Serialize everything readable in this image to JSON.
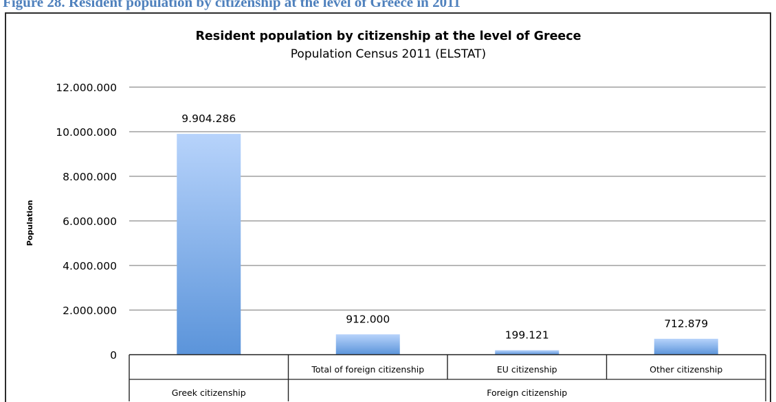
{
  "caption": "Figure 28. Resident population by citizenship at the level of Greece in 2011",
  "colors": {
    "bar_top": "#b7d3fb",
    "bar_bottom": "#5b94da",
    "grid": "#8c8c8c",
    "axis": "#222222",
    "text": "#000000",
    "caption": "#4f81bd"
  },
  "chart_data": {
    "type": "bar",
    "title": "Resident population by citizenship at the level of Greece",
    "subtitle": "Population Census 2011 (ELSTAT)",
    "ylabel": "Population",
    "xlabel": "",
    "ylim": [
      0,
      12000000
    ],
    "yticks": [
      0,
      2000000,
      4000000,
      6000000,
      8000000,
      10000000,
      12000000
    ],
    "ytick_labels": [
      "0",
      "2.000.000",
      "4.000.000",
      "6.000.000",
      "8.000.000",
      "10.000.000",
      "12.000.000"
    ],
    "categories": [
      "Greek citizenship",
      "Total of foreign citizenship",
      "EU citizenship",
      "Other citizenship"
    ],
    "values": [
      9904286,
      912000,
      199121,
      712879
    ],
    "value_labels": [
      "9.904.286",
      "912.000",
      "199.121",
      "712.879"
    ],
    "category_groups": [
      {
        "label": "Greek citizenship",
        "members": [
          "Greek citizenship"
        ]
      },
      {
        "label": "Foreign citizenship",
        "members": [
          "Total of foreign citizenship",
          "EU citizenship",
          "Other citizenship"
        ]
      }
    ],
    "grid": true,
    "legend": "none"
  }
}
